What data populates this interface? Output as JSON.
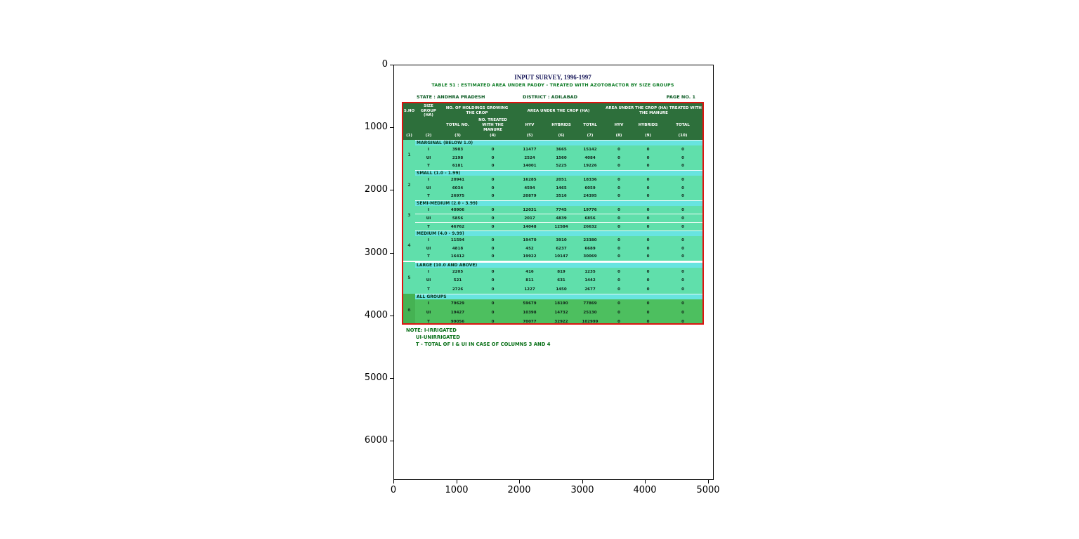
{
  "figure": {
    "x_ticks": [
      "0",
      "1000",
      "2000",
      "3000",
      "4000",
      "5000"
    ],
    "y_ticks": [
      "0",
      "1000",
      "2000",
      "3000",
      "4000",
      "5000",
      "6000"
    ]
  },
  "colors": {
    "header_bg": "#2d6f3b",
    "section_label_bg": "#68e4e0",
    "row_bg": "#60dfab",
    "all_groups_row_bg": "#4dbf5f",
    "all_groups_sno_bg": "#45b253",
    "table_border": "#dc1410",
    "title": "#18185a",
    "subtitle": "#0a7a22",
    "note": "#056e14"
  },
  "document": {
    "title": "INPUT SURVEY, 1996-1997",
    "subtitle": "TABLE 51 : ESTIMATED AREA UNDER PADDY - TREATED WITH AZOTOBACTOR BY SIZE GROUPS",
    "meta": {
      "state": "STATE : ANDHRA PRADESH",
      "district": "DISTRICT : ADILABAD",
      "page": "PAGE NO. 1"
    },
    "table": {
      "header": {
        "sno": "S.NO",
        "size_group": "SIZE GROUP (HA)",
        "holdings_group": "NO. OF HOLDINGS GROWING THE CROP",
        "area_group": "AREA UNDER THE CROP (HA)",
        "treated_group": "AREA UNDER THE CROP (HA) TREATED WITH THE MANURE",
        "sub": [
          "TOTAL NO.",
          "NO. TREATED WITH THE MANURE",
          "HYV",
          "HYBRIDS",
          "TOTAL",
          "HYV",
          "HYBRIDS",
          "TOTAL"
        ]
      },
      "col_numbers": [
        "(1)",
        "(2)",
        "(3)",
        "(4)",
        "(5)",
        "(6)",
        "(7)",
        "(8)",
        "(9)",
        "(10)"
      ],
      "sections": [
        {
          "sno": "1",
          "label": "MARGINAL (BELOW 1.0)",
          "all_groups": false,
          "row_separators": false,
          "gap_above": false,
          "rows": [
            [
              "I",
              "3983",
              "0",
              "11477",
              "3665",
              "15142",
              "0",
              "0",
              "0"
            ],
            [
              "UI",
              "2198",
              "0",
              "2524",
              "1560",
              "4084",
              "0",
              "0",
              "0"
            ],
            [
              "T",
              "6181",
              "0",
              "14001",
              "5225",
              "19226",
              "0",
              "0",
              "0"
            ]
          ]
        },
        {
          "sno": "2",
          "label": "SMALL (1.0 - 1.99)",
          "all_groups": false,
          "row_separators": false,
          "gap_above": false,
          "rows": [
            [
              "I",
              "20941",
              "0",
              "16285",
              "2051",
              "18336",
              "0",
              "0",
              "0"
            ],
            [
              "UI",
              "6034",
              "0",
              "4594",
              "1465",
              "6059",
              "0",
              "0",
              "0"
            ],
            [
              "T",
              "26975",
              "0",
              "20879",
              "3516",
              "24395",
              "0",
              "0",
              "0"
            ]
          ]
        },
        {
          "sno": "3",
          "label": "SEMI-MEDIUM (2.0 - 3.99)",
          "all_groups": false,
          "row_separators": true,
          "gap_above": false,
          "rows": [
            [
              "I",
              "40906",
              "0",
              "12031",
              "7745",
              "19776",
              "0",
              "0",
              "0"
            ],
            [
              "UI",
              "5856",
              "0",
              "2017",
              "4839",
              "6856",
              "0",
              "0",
              "0"
            ],
            [
              "T",
              "46762",
              "0",
              "14048",
              "12584",
              "26632",
              "0",
              "0",
              "0"
            ]
          ]
        },
        {
          "sno": "4",
          "label": "MEDIUM (4.0 - 9.99)",
          "all_groups": false,
          "row_separators": false,
          "gap_above": false,
          "rows": [
            [
              "I",
              "11594",
              "0",
              "19470",
              "3910",
              "23380",
              "0",
              "0",
              "0"
            ],
            [
              "UI",
              "4818",
              "0",
              "452",
              "6237",
              "6689",
              "0",
              "0",
              "0"
            ],
            [
              "T",
              "16412",
              "0",
              "19922",
              "10147",
              "30069",
              "0",
              "0",
              "0"
            ]
          ]
        },
        {
          "sno": "5",
          "label": "LARGE (10.0 AND ABOVE)",
          "all_groups": false,
          "row_separators": false,
          "gap_above": true,
          "rows": [
            [
              "I",
              "2205",
              "0",
              "416",
              "819",
              "1235",
              "0",
              "0",
              "0"
            ],
            [
              "UI",
              "521",
              "0",
              "811",
              "631",
              "1442",
              "0",
              "0",
              "0"
            ],
            [
              "T",
              "2726",
              "0",
              "1227",
              "1450",
              "2677",
              "0",
              "0",
              "0"
            ]
          ]
        },
        {
          "sno": "6",
          "label": "ALL GROUPS",
          "all_groups": true,
          "row_separators": false,
          "gap_above": false,
          "rows": [
            [
              "I",
              "79629",
              "0",
              "59679",
              "18190",
              "77869",
              "0",
              "0",
              "0"
            ],
            [
              "UI",
              "19427",
              "0",
              "10398",
              "14732",
              "25130",
              "0",
              "0",
              "0"
            ],
            [
              "T",
              "99056",
              "0",
              "70077",
              "32922",
              "102999",
              "0",
              "0",
              "0"
            ]
          ]
        }
      ]
    },
    "notes": {
      "line1": "NOTE: I-IRRIGATED",
      "line2": "UI-UNIRRIGATED",
      "line3": "T - TOTAL OF I & UI IN CASE OF COLUMNS 3 AND 4"
    }
  }
}
